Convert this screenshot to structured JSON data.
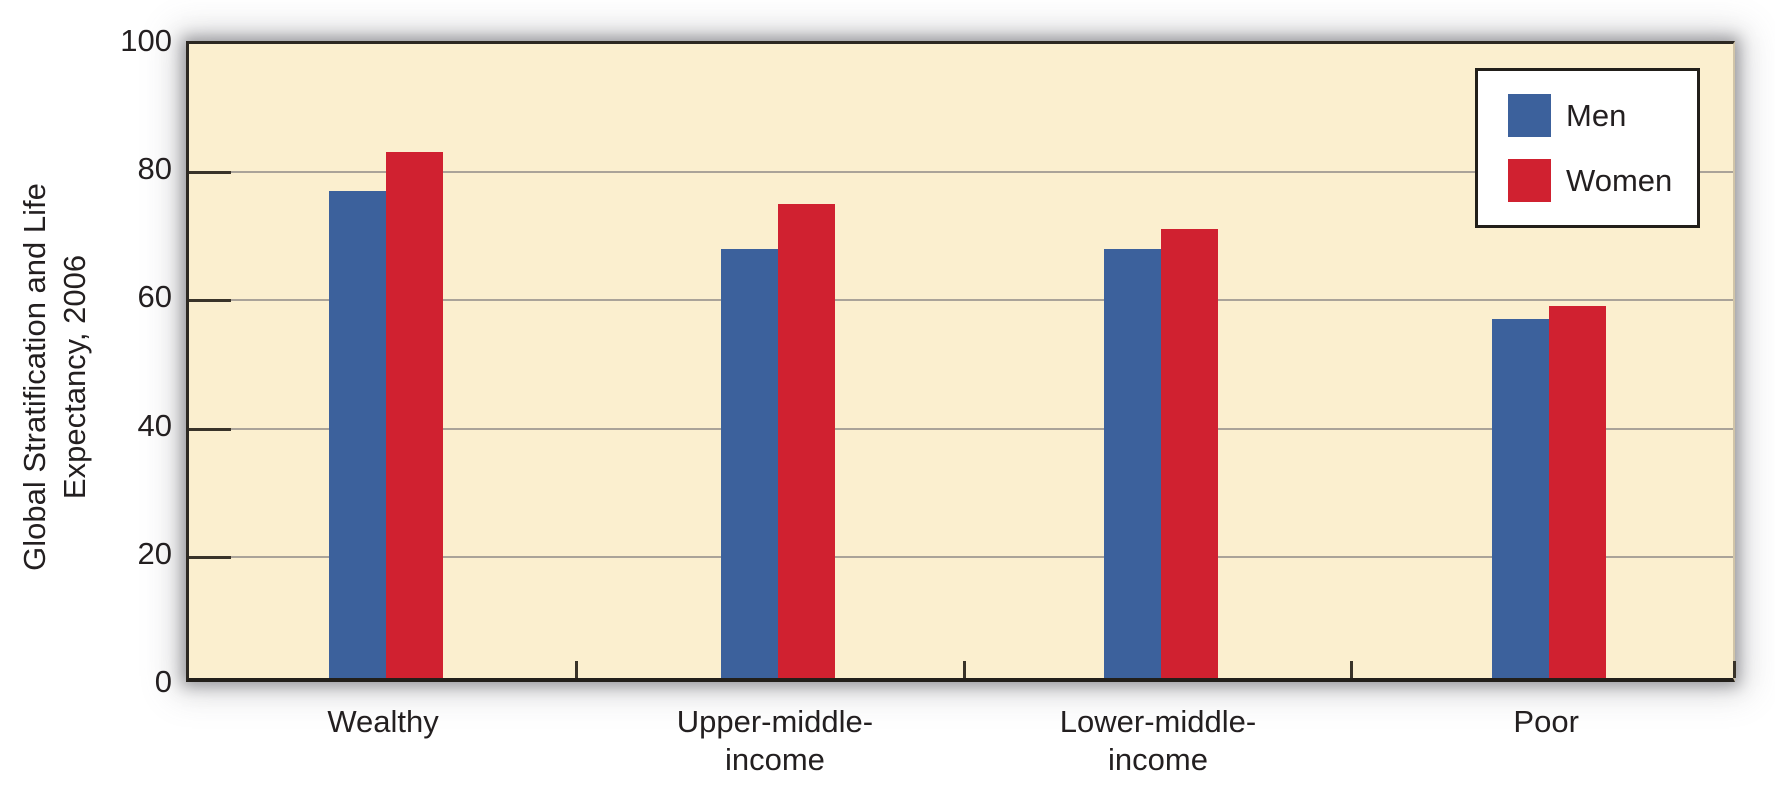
{
  "chart_data": {
    "type": "bar",
    "title": "",
    "xlabel": "",
    "ylabel": "Global Stratification and Life Expectancy, 2006",
    "ylabel_lines": [
      "Global Stratification and Life",
      "Expectancy, 2006"
    ],
    "categories": [
      "Wealthy",
      "Upper-middle-\nincome",
      "Lower-middle-\nincome",
      "Poor"
    ],
    "series": [
      {
        "name": "Men",
        "color": "#3C619C",
        "values": [
          76,
          67,
          67,
          56
        ]
      },
      {
        "name": "Women",
        "color": "#D02130",
        "values": [
          82,
          74,
          70,
          58
        ]
      }
    ],
    "ylim": [
      0,
      100
    ],
    "yticks": [
      0,
      20,
      40,
      60,
      80,
      100
    ],
    "grid": "horizontal",
    "legend_position": "top-right",
    "plot_background": "#FBEFCF",
    "gridline_color": "#AAA399",
    "axis_color": "#221F1A"
  }
}
